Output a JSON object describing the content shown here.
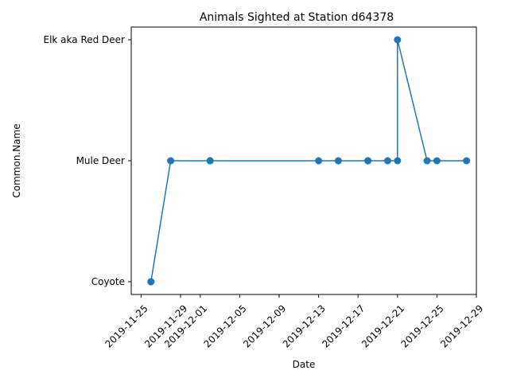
{
  "chart_data": {
    "type": "line",
    "title": "Animals Sighted at Station d64378",
    "xlabel": "Date",
    "ylabel": "Common.Name",
    "xlim": [
      "2019-11-24",
      "2019-12-29"
    ],
    "x_ticks": [
      "2019-11-25",
      "2019-11-29",
      "2019-12-01",
      "2019-12-05",
      "2019-12-09",
      "2019-12-13",
      "2019-12-17",
      "2019-12-21",
      "2019-12-25",
      "2019-12-29"
    ],
    "categories": [
      "Coyote",
      "Mule Deer",
      "Elk aka Red Deer"
    ],
    "grid": false,
    "line_color": "#1f77b4",
    "points": [
      {
        "x": "2019-11-26",
        "y": "Coyote"
      },
      {
        "x": "2019-11-26",
        "y": "Coyote"
      },
      {
        "x": "2019-11-28",
        "y": "Mule Deer"
      },
      {
        "x": "2019-12-02",
        "y": "Mule Deer"
      },
      {
        "x": "2019-12-02",
        "y": "Mule Deer"
      },
      {
        "x": "2019-12-13",
        "y": "Mule Deer"
      },
      {
        "x": "2019-12-15",
        "y": "Mule Deer"
      },
      {
        "x": "2019-12-18",
        "y": "Mule Deer"
      },
      {
        "x": "2019-12-18",
        "y": "Mule Deer"
      },
      {
        "x": "2019-12-20",
        "y": "Mule Deer"
      },
      {
        "x": "2019-12-21",
        "y": "Mule Deer"
      },
      {
        "x": "2019-12-21",
        "y": "Elk aka Red Deer"
      },
      {
        "x": "2019-12-24",
        "y": "Mule Deer"
      },
      {
        "x": "2019-12-25",
        "y": "Mule Deer"
      },
      {
        "x": "2019-12-28",
        "y": "Mule Deer"
      }
    ]
  }
}
